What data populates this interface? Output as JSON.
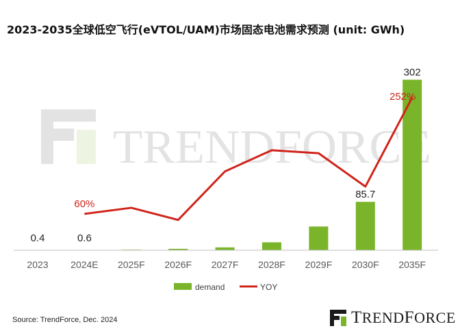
{
  "title": "2023-2035全球低空飞行(eVTOL/UAM)市场固态电池需求预测 (unit: GWh)",
  "source": "Source: TrendForce, Dec. 2024",
  "watermark": "TRENDFORCE",
  "brand": "TRENDFORCE",
  "colors": {
    "demand": "#7ab42a",
    "yoy": "#d0241b",
    "axis": "#bfbfbf",
    "tick_text": "#595959"
  },
  "chart_data": {
    "type": "bar",
    "categories": [
      "2023",
      "2024E",
      "2025F",
      "2026F",
      "2027F",
      "2028F",
      "2029F",
      "2030F",
      "2035F"
    ],
    "series": [
      {
        "name": "demand",
        "type": "bar",
        "values": [
          0.4,
          0.6,
          1.0,
          2.5,
          5.0,
          14.0,
          42.0,
          85.7,
          302
        ]
      },
      {
        "name": "YOY",
        "type": "line",
        "unit": "%",
        "values": [
          null,
          60,
          70,
          50,
          130,
          165,
          160,
          105,
          252
        ]
      }
    ],
    "data_labels": [
      {
        "series": "demand",
        "index": 0,
        "text": "0.4"
      },
      {
        "series": "demand",
        "index": 1,
        "text": "0.6"
      },
      {
        "series": "demand",
        "index": 7,
        "text": "85.7"
      },
      {
        "series": "demand",
        "index": 8,
        "text": "302"
      },
      {
        "series": "YOY",
        "index": 1,
        "text": "60%"
      },
      {
        "series": "YOY",
        "index": 8,
        "text": "252%"
      }
    ],
    "ylim_bar": [
      0,
      310
    ],
    "ylim_line": [
      0,
      300
    ],
    "legend": {
      "position": "bottom",
      "entries": [
        "demand",
        "YOY"
      ]
    },
    "grid": false
  }
}
